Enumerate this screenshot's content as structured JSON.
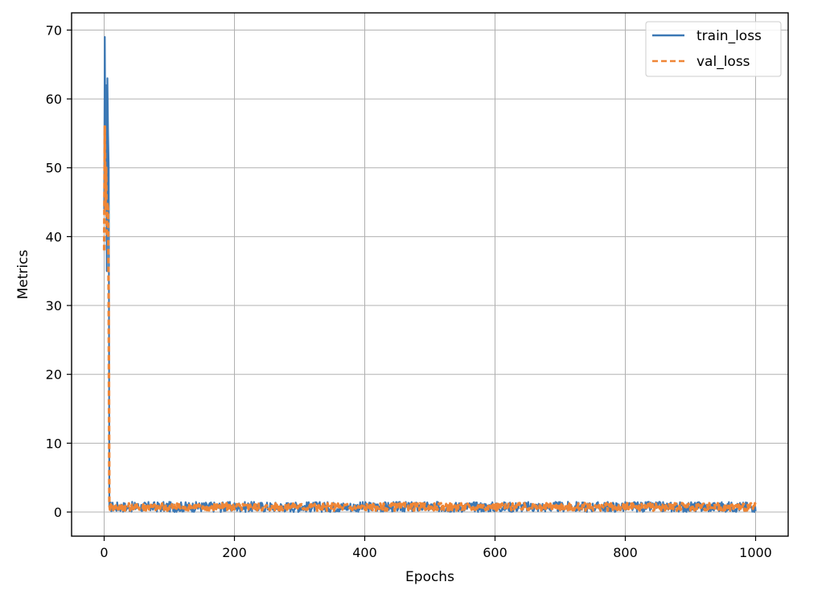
{
  "chart_data": {
    "type": "line",
    "xlabel": "Epochs",
    "ylabel": "Metrics",
    "xlim": [
      -50,
      1050
    ],
    "ylim": [
      -3.5,
      72.5
    ],
    "xticks": [
      0,
      200,
      400,
      600,
      800,
      1000
    ],
    "yticks": [
      0,
      10,
      20,
      30,
      40,
      50,
      60,
      70
    ],
    "grid": true,
    "legend_position": "top-right",
    "series": [
      {
        "name": "train_loss",
        "color": "#3b78b5",
        "style": "solid",
        "x": [
          0,
          1,
          2,
          3,
          4,
          5,
          6,
          7,
          8,
          10,
          15,
          20,
          50,
          100,
          200,
          300,
          400,
          500,
          600,
          700,
          800,
          900,
          1000
        ],
        "y": [
          44,
          69,
          50,
          62,
          35,
          63,
          55,
          50,
          1.0,
          0.8,
          0.6,
          0.8,
          0.6,
          0.7,
          0.6,
          0.6,
          0.6,
          0.6,
          0.6,
          0.6,
          0.6,
          0.6,
          0.6
        ],
        "noise_band": [
          0,
          1.5
        ]
      },
      {
        "name": "val_loss",
        "color": "#ef8636",
        "style": "dashed",
        "x": [
          0,
          1,
          2,
          3,
          4,
          5,
          6,
          7,
          8,
          10,
          15,
          20,
          50,
          100,
          200,
          300,
          400,
          500,
          600,
          700,
          800,
          900,
          1000
        ],
        "y": [
          38,
          56,
          44,
          50,
          40,
          45,
          44,
          30,
          1.0,
          0.9,
          0.8,
          0.8,
          0.7,
          0.8,
          0.7,
          0.7,
          0.7,
          0.7,
          0.7,
          0.7,
          0.7,
          0.7,
          0.7
        ],
        "noise_band": [
          0.2,
          1.3
        ]
      }
    ]
  }
}
